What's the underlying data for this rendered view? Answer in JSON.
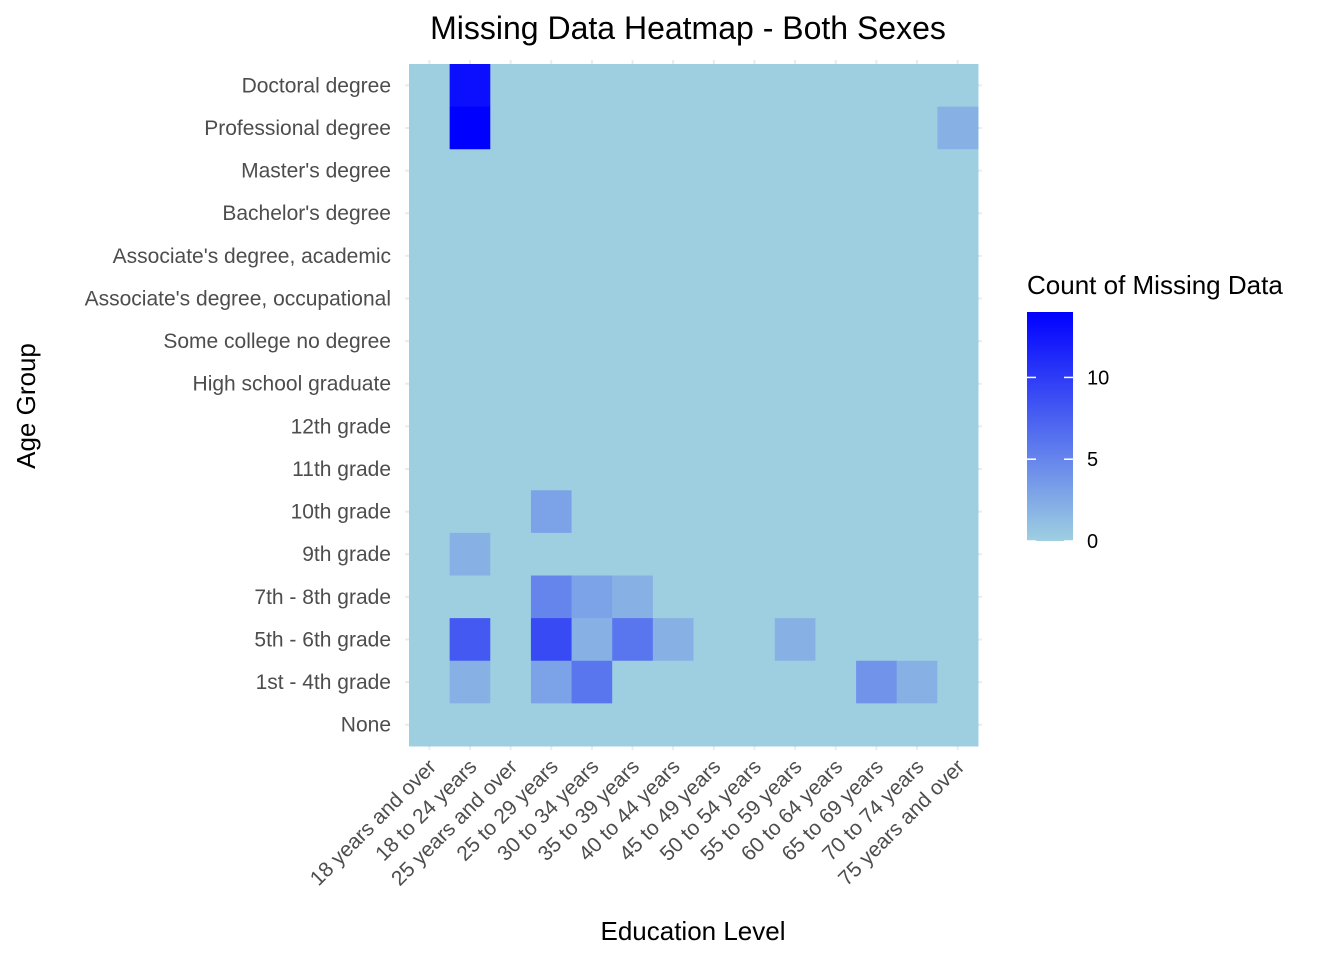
{
  "chart_data": {
    "type": "heatmap",
    "title": "Missing Data Heatmap - Both Sexes",
    "xlabel": "Education Level",
    "ylabel": "Age Group",
    "x_categories": [
      "18 years and over",
      "18 to 24 years",
      "25 years and over",
      "25 to 29 years",
      "30 to 34 years",
      "35 to 39 years",
      "40 to 44 years",
      "45 to 49 years",
      "50 to 54 years",
      "55 to 59 years",
      "60 to 64 years",
      "65 to 69 years",
      "70 to 74 years",
      "75 years and over"
    ],
    "y_categories_top_to_bottom": [
      "Doctoral degree",
      "Professional degree",
      "Master's degree",
      "Bachelor's degree",
      "Associate's degree, academic",
      "Associate's degree, occupational",
      "Some college no degree",
      "High school graduate",
      "12th grade",
      "11th grade",
      "10th grade",
      "9th grade",
      "7th - 8th grade",
      "5th - 6th grade",
      "1st - 4th grade",
      "None"
    ],
    "values": [
      [
        0,
        13,
        0,
        0,
        0,
        0,
        0,
        0,
        0,
        0,
        0,
        0,
        0,
        0
      ],
      [
        0,
        14,
        0,
        0,
        0,
        0,
        0,
        0,
        0,
        0,
        0,
        0,
        0,
        2
      ],
      [
        0,
        0,
        0,
        0,
        0,
        0,
        0,
        0,
        0,
        0,
        0,
        0,
        0,
        0
      ],
      [
        0,
        0,
        0,
        0,
        0,
        0,
        0,
        0,
        0,
        0,
        0,
        0,
        0,
        0
      ],
      [
        0,
        0,
        0,
        0,
        0,
        0,
        0,
        0,
        0,
        0,
        0,
        0,
        0,
        0
      ],
      [
        0,
        0,
        0,
        0,
        0,
        0,
        0,
        0,
        0,
        0,
        0,
        0,
        0,
        0
      ],
      [
        0,
        0,
        0,
        0,
        0,
        0,
        0,
        0,
        0,
        0,
        0,
        0,
        0,
        0
      ],
      [
        0,
        0,
        0,
        0,
        0,
        0,
        0,
        0,
        0,
        0,
        0,
        0,
        0,
        0
      ],
      [
        0,
        0,
        0,
        0,
        0,
        0,
        0,
        0,
        0,
        0,
        0,
        0,
        0,
        0
      ],
      [
        0,
        0,
        0,
        0,
        0,
        0,
        0,
        0,
        0,
        0,
        0,
        0,
        0,
        0
      ],
      [
        0,
        0,
        0,
        3,
        0,
        0,
        0,
        0,
        0,
        0,
        0,
        0,
        0,
        0
      ],
      [
        0,
        2,
        0,
        0,
        0,
        0,
        0,
        0,
        0,
        0,
        0,
        0,
        0,
        0
      ],
      [
        0,
        0,
        0,
        5,
        3,
        2,
        0,
        0,
        0,
        0,
        0,
        0,
        0,
        0
      ],
      [
        0,
        8,
        0,
        9,
        2,
        6,
        2,
        0,
        0,
        2,
        0,
        0,
        0,
        0
      ],
      [
        0,
        2,
        0,
        3,
        6,
        0,
        0,
        0,
        0,
        0,
        0,
        4,
        2,
        0
      ],
      [
        0,
        0,
        0,
        0,
        0,
        0,
        0,
        0,
        0,
        0,
        0,
        0,
        0,
        0
      ]
    ],
    "color_scale": {
      "low_color": "#9ecfe1",
      "high_color": "#0000ff",
      "min": 0,
      "max": 14
    },
    "legend": {
      "title": "Count of Missing Data",
      "ticks": [
        0,
        5,
        10
      ],
      "position": "right"
    },
    "grid": true
  }
}
